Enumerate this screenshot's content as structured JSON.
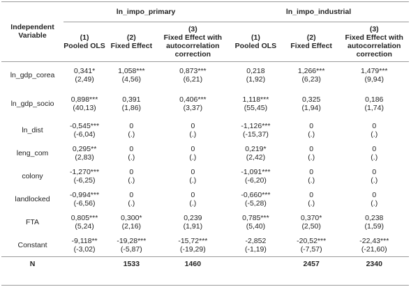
{
  "header": {
    "independent_variable": "Independent Variable",
    "group_primary": "ln_impo_primary",
    "group_industrial": "ln_impo_industrial",
    "columns": [
      {
        "num": "(1)",
        "label": "Pooled OLS"
      },
      {
        "num": "(2)",
        "label": "Fixed Effect"
      },
      {
        "num": "(3)",
        "label": "Fixed Effect with autocorrelation correction"
      },
      {
        "num": "(1)",
        "label": "Pooled OLS"
      },
      {
        "num": "(2)",
        "label": "Fixed Effect"
      },
      {
        "num": "(3)",
        "label": "Fixed Effect with autocorrelation correction"
      }
    ]
  },
  "rows": [
    {
      "var": "ln_gdp_corea",
      "cells": [
        [
          "0,341*",
          "(2,49)"
        ],
        [
          "1,058***",
          "(4,56)"
        ],
        [
          "0,873***",
          "(6,21)"
        ],
        [
          "0,218",
          "(1,92)"
        ],
        [
          "1,266***",
          "(6,23)"
        ],
        [
          "1,479***",
          "(9,94)"
        ]
      ]
    },
    {
      "var": "ln_gdp_socio",
      "cells": [
        [
          "0,898***",
          "(40,13)"
        ],
        [
          "0,391",
          "(1,86)"
        ],
        [
          "0,406***",
          "(3,37)"
        ],
        [
          "1,118***",
          "(55,45)"
        ],
        [
          "0,325",
          "(1,94)"
        ],
        [
          "0,186",
          "(1,74)"
        ]
      ]
    },
    {
      "var": "ln_dist",
      "cells": [
        [
          "-0,545***",
          "(-6,04)"
        ],
        [
          "0",
          "(.)"
        ],
        [
          "0",
          "(.)"
        ],
        [
          "-1,126***",
          "(-15,37)"
        ],
        [
          "0",
          "(.)"
        ],
        [
          "0",
          "(.)"
        ]
      ]
    },
    {
      "var": "leng_com",
      "cells": [
        [
          "0,295**",
          "(2,83)"
        ],
        [
          "0",
          "(.)"
        ],
        [
          "0",
          "(.)"
        ],
        [
          "0,219*",
          "(2,42)"
        ],
        [
          "0",
          "(.)"
        ],
        [
          "0",
          "(.)"
        ]
      ]
    },
    {
      "var": "colony",
      "cells": [
        [
          "-1,270***",
          "(-6,25)"
        ],
        [
          "0",
          "(.)"
        ],
        [
          "0",
          "(.)"
        ],
        [
          "-1,091***",
          "(-6,20)"
        ],
        [
          "0",
          "(.)"
        ],
        [
          "0",
          "(.)"
        ]
      ]
    },
    {
      "var": "landlocked",
      "cells": [
        [
          "-0,994***",
          "(-6,56)"
        ],
        [
          "0",
          "(.)"
        ],
        [
          "0",
          "(.)"
        ],
        [
          "-0,660***",
          "(-5,28)"
        ],
        [
          "0",
          "(.)"
        ],
        [
          "0",
          "(.)"
        ]
      ]
    },
    {
      "var": "FTA",
      "cells": [
        [
          "0,805***",
          "(5,24)"
        ],
        [
          "0,300*",
          "(2,16)"
        ],
        [
          "0,239",
          "(1,91)"
        ],
        [
          "0,785***",
          "(5,40)"
        ],
        [
          "0,370*",
          "(2,50)"
        ],
        [
          "0,238",
          "(1,59)"
        ]
      ]
    },
    {
      "var": "Constant",
      "cells": [
        [
          "-9,118**",
          "(-3,02)"
        ],
        [
          "-19,28***",
          "(-5,87)"
        ],
        [
          "-15,72***",
          "(-19,29)"
        ],
        [
          "-2,852",
          "(-1,19)"
        ],
        [
          "-20,52***",
          "(-7,57)"
        ],
        [
          "-22,43***",
          "(-21,60)"
        ]
      ]
    }
  ],
  "n_row": {
    "label": "N",
    "values": [
      "",
      "1533",
      "1460",
      "",
      "2457",
      "2340"
    ]
  }
}
